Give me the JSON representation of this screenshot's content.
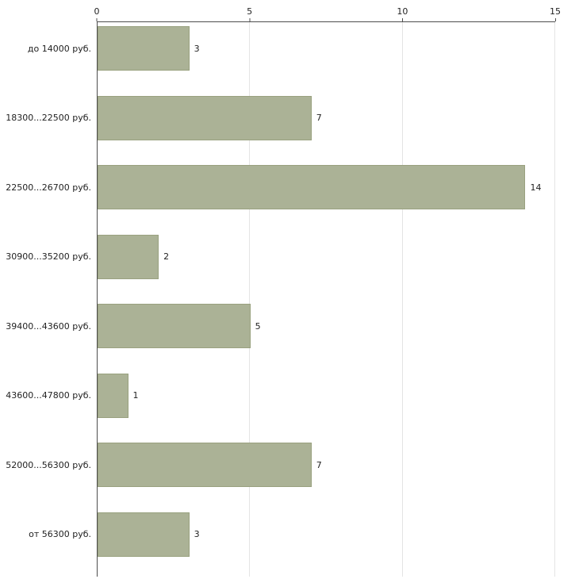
{
  "chart_data": {
    "type": "bar",
    "orientation": "horizontal",
    "title": "",
    "xlabel": "",
    "ylabel": "",
    "categories": [
      "до 14000 руб.",
      "18300...22500 руб.",
      "22500...26700 руб.",
      "30900...35200 руб.",
      "39400...43600 руб.",
      "43600...47800 руб.",
      "52000...56300 руб.",
      "от 56300 руб."
    ],
    "values": [
      3,
      7,
      14,
      2,
      5,
      1,
      7,
      3
    ],
    "xlim": [
      0,
      15
    ],
    "x_ticks": [
      0,
      5,
      10,
      15
    ],
    "axis_position": "top",
    "grid": true,
    "legend": false,
    "bar_color": "#abb296",
    "bar_border_color": "#99a17f",
    "axis_color": "#4d4d4d",
    "grid_color": "#e4e4e4",
    "background_color": "#ffffff",
    "text_color": "#222222"
  }
}
